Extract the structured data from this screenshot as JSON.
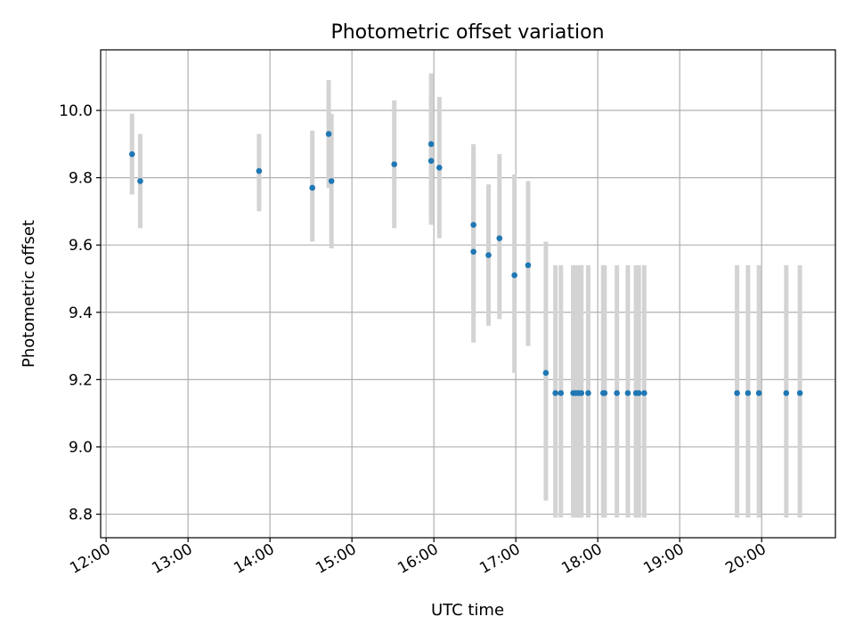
{
  "chart_data": {
    "type": "scatter",
    "title": "Photometric offset variation",
    "xlabel": "UTC time",
    "ylabel": "Photometric offset",
    "x_tick_labels": [
      "12:00",
      "13:00",
      "14:00",
      "15:00",
      "16:00",
      "17:00",
      "18:00",
      "19:00",
      "20:00"
    ],
    "y_tick_labels": [
      "8.8",
      "9.0",
      "9.2",
      "9.4",
      "9.6",
      "9.8",
      "10.0"
    ],
    "xlim": [
      "11:56",
      "20:54"
    ],
    "ylim": [
      8.73,
      10.18
    ],
    "y_ticks": [
      8.8,
      9.0,
      9.2,
      9.4,
      9.6,
      9.8,
      10.0
    ],
    "grid": true,
    "error_bar_color": "#d3d3d3",
    "marker_color": "#1f77b4",
    "points": [
      {
        "t": "12:19",
        "y": 9.87,
        "ylo": 9.75,
        "yhi": 9.99
      },
      {
        "t": "12:25",
        "y": 9.79,
        "ylo": 9.65,
        "yhi": 9.93
      },
      {
        "t": "13:52",
        "y": 9.82,
        "ylo": 9.7,
        "yhi": 9.93
      },
      {
        "t": "14:31",
        "y": 9.77,
        "ylo": 9.61,
        "yhi": 9.94
      },
      {
        "t": "14:43",
        "y": 9.93,
        "ylo": 9.77,
        "yhi": 10.09
      },
      {
        "t": "14:45",
        "y": 9.79,
        "ylo": 9.59,
        "yhi": 9.99
      },
      {
        "t": "15:31",
        "y": 9.84,
        "ylo": 9.65,
        "yhi": 10.03
      },
      {
        "t": "15:58",
        "y": 9.85,
        "ylo": 9.66,
        "yhi": 10.04
      },
      {
        "t": "15:58",
        "y": 9.9,
        "ylo": 9.69,
        "yhi": 10.11
      },
      {
        "t": "16:04",
        "y": 9.83,
        "ylo": 9.62,
        "yhi": 10.04
      },
      {
        "t": "16:29",
        "y": 9.66,
        "ylo": 9.41,
        "yhi": 9.9
      },
      {
        "t": "16:29",
        "y": 9.58,
        "ylo": 9.31,
        "yhi": 9.86
      },
      {
        "t": "16:40",
        "y": 9.57,
        "ylo": 9.36,
        "yhi": 9.78
      },
      {
        "t": "16:48",
        "y": 9.62,
        "ylo": 9.38,
        "yhi": 9.87
      },
      {
        "t": "16:59",
        "y": 9.51,
        "ylo": 9.22,
        "yhi": 9.81
      },
      {
        "t": "17:09",
        "y": 9.54,
        "ylo": 9.3,
        "yhi": 9.79
      },
      {
        "t": "17:22",
        "y": 9.22,
        "ylo": 8.84,
        "yhi": 9.61
      },
      {
        "t": "17:29",
        "y": 9.16,
        "ylo": 8.79,
        "yhi": 9.54
      },
      {
        "t": "17:33",
        "y": 9.16,
        "ylo": 8.79,
        "yhi": 9.54
      },
      {
        "t": "17:42",
        "y": 9.16,
        "ylo": 8.79,
        "yhi": 9.54
      },
      {
        "t": "17:44",
        "y": 9.16,
        "ylo": 8.79,
        "yhi": 9.54
      },
      {
        "t": "17:46",
        "y": 9.16,
        "ylo": 8.79,
        "yhi": 9.54
      },
      {
        "t": "17:48",
        "y": 9.16,
        "ylo": 8.79,
        "yhi": 9.54
      },
      {
        "t": "17:53",
        "y": 9.16,
        "ylo": 8.79,
        "yhi": 9.54
      },
      {
        "t": "18:04",
        "y": 9.16,
        "ylo": 8.79,
        "yhi": 9.54
      },
      {
        "t": "18:05",
        "y": 9.16,
        "ylo": 8.79,
        "yhi": 9.54
      },
      {
        "t": "18:14",
        "y": 9.16,
        "ylo": 8.79,
        "yhi": 9.54
      },
      {
        "t": "18:22",
        "y": 9.16,
        "ylo": 8.79,
        "yhi": 9.54
      },
      {
        "t": "18:28",
        "y": 9.16,
        "ylo": 8.79,
        "yhi": 9.54
      },
      {
        "t": "18:30",
        "y": 9.16,
        "ylo": 8.79,
        "yhi": 9.54
      },
      {
        "t": "18:34",
        "y": 9.16,
        "ylo": 8.79,
        "yhi": 9.54
      },
      {
        "t": "19:42",
        "y": 9.16,
        "ylo": 8.79,
        "yhi": 9.54
      },
      {
        "t": "19:50",
        "y": 9.16,
        "ylo": 8.79,
        "yhi": 9.54
      },
      {
        "t": "19:58",
        "y": 9.16,
        "ylo": 8.79,
        "yhi": 9.54
      },
      {
        "t": "20:18",
        "y": 9.16,
        "ylo": 8.79,
        "yhi": 9.54
      },
      {
        "t": "20:28",
        "y": 9.16,
        "ylo": 8.79,
        "yhi": 9.54
      }
    ]
  }
}
